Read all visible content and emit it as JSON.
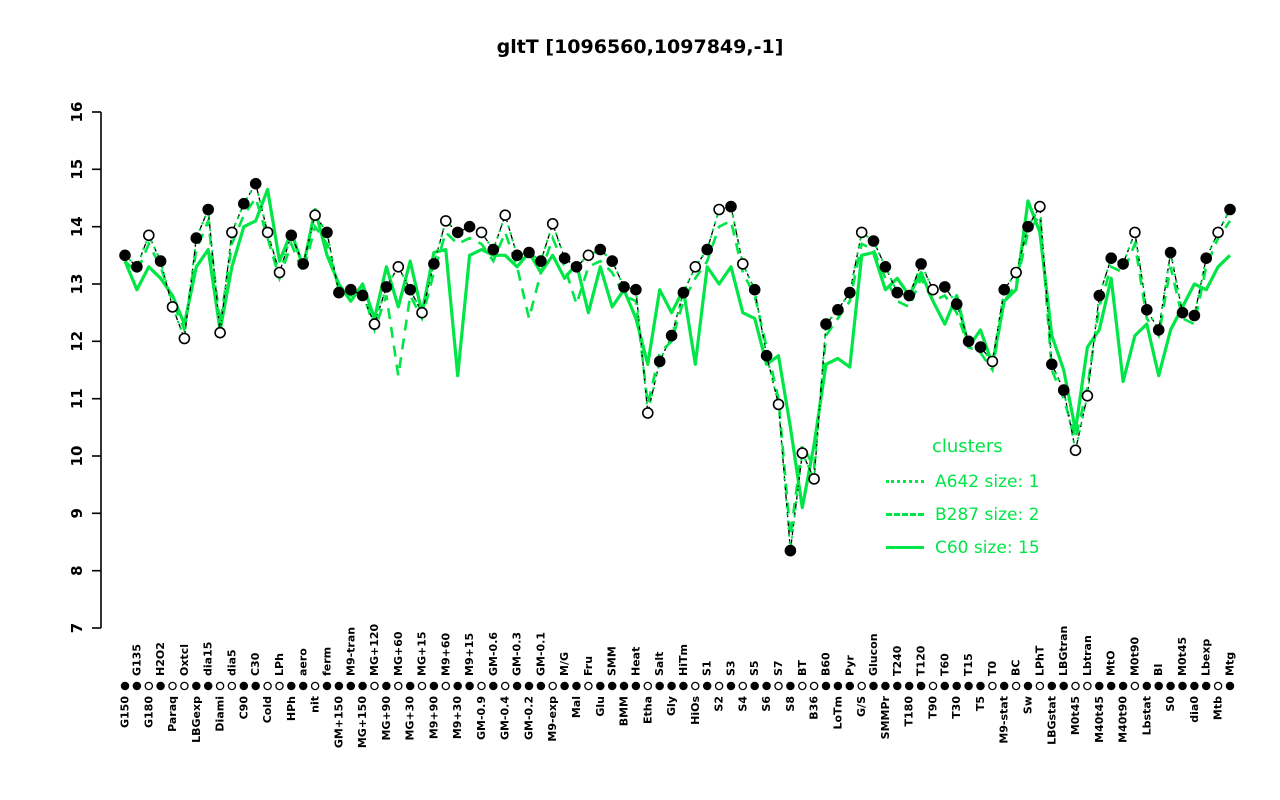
{
  "colors": {
    "cluster": "#00E646",
    "point": "#000000",
    "background": "#ffffff"
  },
  "legend": {
    "title": "clusters",
    "entries": [
      {
        "label": "A642 size: 1",
        "style": "dotted"
      },
      {
        "label": "B287 size: 2",
        "style": "dashed"
      },
      {
        "label": "C60 size: 15",
        "style": "solid"
      }
    ]
  },
  "chart_data": {
    "type": "line",
    "title": "gltT [1096560,1097849,-1]",
    "ylim": [
      7,
      16
    ],
    "yticks": [
      "7",
      "8",
      "9",
      "10",
      "11",
      "12",
      "13",
      "14",
      "15",
      "16"
    ],
    "legend_position": "lower-right",
    "grid": false,
    "categories": [
      "G150",
      "G135",
      "G180",
      "H2O2",
      "Paraq",
      "Oxtcl",
      "LBGexp",
      "dia15",
      "Diami",
      "dia5",
      "C90",
      "C30",
      "Cold",
      "LPh",
      "HPh",
      "aero",
      "nit",
      "ferm",
      "GM+150",
      "M9-tran",
      "MG+150",
      "MG+120",
      "MG+90",
      "MG+60",
      "MG+30",
      "MG+15",
      "M9+90",
      "M9+60",
      "M9+30",
      "M9+15",
      "GM-0.9",
      "GM-0.6",
      "GM-0.4",
      "GM-0.3",
      "GM-0.2",
      "GM-0.1",
      "M9-exp",
      "M/G",
      "Mal",
      "Fru",
      "Glu",
      "SMM",
      "BMM",
      "Heat",
      "Etha",
      "Salt",
      "Gly",
      "HiTm",
      "HiOs",
      "S1",
      "S2",
      "S3",
      "S4",
      "S5",
      "S6",
      "S7",
      "S8",
      "BT",
      "B36",
      "B60",
      "LoTm",
      "Pyr",
      "G/S",
      "Glucon",
      "SMMPr",
      "T240",
      "T180",
      "T120",
      "T90",
      "T60",
      "T30",
      "T15",
      "T5",
      "T0",
      "M9-stat",
      "BC",
      "Sw",
      "LPhT",
      "LBGstat",
      "LBGtran",
      "M0t45",
      "Lbtran",
      "M40t45",
      "MtO",
      "M40t90",
      "M0t90",
      "Lbstat",
      "BI",
      "S0",
      "M0t45",
      "dia0",
      "Lbexp",
      "Mtb",
      "Mtg"
    ],
    "series": [
      {
        "name": "gene",
        "style": "points-dashed-black",
        "color": "#000000",
        "values": [
          13.5,
          13.3,
          13.85,
          13.4,
          12.6,
          12.05,
          13.8,
          14.3,
          12.15,
          13.9,
          14.4,
          14.75,
          13.9,
          13.2,
          13.85,
          13.35,
          14.2,
          13.9,
          12.85,
          12.9,
          12.8,
          12.3,
          12.95,
          13.3,
          12.9,
          12.5,
          13.35,
          14.1,
          13.9,
          14.0,
          13.9,
          13.6,
          14.2,
          13.5,
          13.55,
          13.4,
          14.05,
          13.45,
          13.3,
          13.5,
          13.6,
          13.4,
          12.95,
          12.9,
          10.75,
          11.65,
          12.1,
          12.85,
          13.3,
          13.6,
          14.3,
          14.35,
          13.35,
          12.9,
          11.75,
          10.9,
          8.35,
          10.05,
          9.6,
          12.3,
          12.55,
          12.85,
          13.9,
          13.75,
          13.3,
          12.85,
          12.8,
          13.35,
          12.9,
          12.95,
          12.65,
          12.0,
          11.9,
          11.65,
          12.9,
          13.2,
          14.0,
          14.35,
          11.6,
          11.15,
          10.1,
          11.05,
          12.8,
          13.45,
          13.35,
          13.9,
          12.55,
          12.2,
          13.55,
          12.5,
          12.45,
          13.45,
          13.9,
          14.3
        ],
        "filled": [
          true,
          true,
          false,
          true,
          false,
          false,
          true,
          true,
          false,
          false,
          true,
          true,
          false,
          false,
          true,
          true,
          false,
          true,
          true,
          true,
          true,
          false,
          true,
          false,
          true,
          false,
          true,
          false,
          true,
          true,
          false,
          true,
          false,
          true,
          true,
          true,
          false,
          true,
          true,
          false,
          true,
          true,
          true,
          true,
          false,
          true,
          true,
          true,
          false,
          true,
          false,
          true,
          false,
          true,
          true,
          false,
          true,
          false,
          false,
          true,
          true,
          true,
          false,
          true,
          true,
          true,
          true,
          true,
          false,
          true,
          true,
          true,
          true,
          false,
          true,
          false,
          true,
          false,
          true,
          true,
          false,
          false,
          true,
          true,
          true,
          false,
          true,
          true,
          true,
          true,
          true,
          true,
          false,
          true
        ]
      },
      {
        "name": "A642 size: 1",
        "style": "dotted",
        "color": "#00E646",
        "values": [
          13.5,
          13.3,
          13.85,
          13.4,
          12.6,
          12.05,
          13.8,
          14.3,
          12.15,
          13.9,
          14.4,
          14.75,
          13.9,
          13.2,
          13.85,
          13.35,
          14.2,
          13.9,
          12.85,
          12.9,
          12.8,
          12.3,
          12.95,
          13.3,
          12.9,
          12.5,
          13.35,
          14.1,
          13.9,
          14.0,
          13.9,
          13.6,
          14.2,
          13.5,
          13.55,
          13.4,
          14.05,
          13.45,
          13.3,
          13.5,
          13.6,
          13.4,
          12.95,
          12.9,
          10.75,
          11.65,
          12.1,
          12.85,
          13.3,
          13.6,
          14.3,
          14.35,
          13.35,
          12.9,
          11.75,
          10.9,
          8.35,
          10.05,
          9.6,
          12.3,
          12.55,
          12.85,
          13.9,
          13.75,
          13.3,
          12.85,
          12.8,
          13.35,
          12.9,
          12.95,
          12.65,
          12.0,
          11.9,
          11.65,
          12.9,
          13.2,
          14.0,
          14.35,
          11.6,
          11.15,
          10.1,
          11.05,
          12.8,
          13.45,
          13.35,
          13.9,
          12.55,
          12.2,
          13.55,
          12.5,
          12.45,
          13.45,
          13.9,
          14.3
        ]
      },
      {
        "name": "B287 size: 2",
        "style": "dashed",
        "color": "#00E646",
        "values": [
          13.4,
          13.2,
          13.7,
          13.3,
          12.7,
          12.2,
          13.6,
          14.1,
          12.3,
          13.7,
          14.2,
          14.5,
          13.8,
          13.1,
          13.7,
          13.2,
          14.0,
          13.7,
          12.9,
          12.8,
          12.9,
          12.2,
          12.8,
          11.4,
          12.8,
          12.4,
          13.2,
          13.9,
          13.7,
          13.8,
          13.7,
          13.4,
          13.9,
          13.3,
          12.4,
          13.2,
          13.8,
          13.3,
          12.65,
          13.3,
          13.4,
          13.2,
          12.8,
          12.7,
          10.9,
          11.8,
          12.0,
          12.7,
          13.1,
          13.4,
          14.0,
          14.1,
          13.2,
          12.8,
          11.9,
          11.0,
          8.6,
          10.2,
          9.8,
          12.1,
          12.4,
          12.7,
          13.7,
          13.6,
          13.1,
          12.7,
          12.6,
          13.1,
          12.7,
          12.8,
          12.5,
          11.9,
          11.8,
          11.5,
          12.7,
          13.0,
          13.9,
          14.2,
          11.5,
          11.0,
          10.3,
          11.2,
          12.6,
          13.3,
          13.2,
          13.7,
          12.4,
          12.1,
          13.3,
          12.4,
          12.3,
          13.3,
          13.8,
          14.1
        ]
      },
      {
        "name": "C60 size: 15",
        "style": "solid",
        "color": "#00E646",
        "values": [
          13.4,
          12.9,
          13.3,
          13.1,
          12.8,
          12.3,
          13.3,
          13.6,
          12.2,
          13.3,
          14.0,
          14.1,
          14.65,
          13.4,
          13.9,
          13.3,
          14.3,
          13.5,
          13.0,
          12.7,
          13.0,
          12.4,
          13.3,
          12.6,
          13.4,
          12.5,
          13.55,
          13.6,
          11.4,
          13.5,
          13.6,
          13.5,
          13.5,
          13.3,
          13.55,
          13.2,
          13.5,
          13.1,
          13.35,
          12.5,
          13.3,
          12.6,
          12.9,
          12.4,
          11.6,
          12.9,
          12.5,
          12.9,
          11.6,
          13.3,
          13.0,
          13.3,
          12.5,
          12.4,
          11.6,
          11.75,
          10.5,
          9.1,
          10.2,
          11.6,
          11.7,
          11.55,
          13.5,
          13.55,
          12.9,
          13.1,
          12.8,
          13.2,
          12.7,
          12.3,
          12.8,
          11.9,
          12.2,
          11.6,
          12.7,
          12.9,
          14.45,
          13.9,
          12.1,
          11.5,
          10.45,
          11.9,
          12.2,
          13.1,
          11.3,
          12.1,
          12.3,
          11.4,
          12.2,
          12.6,
          13.0,
          12.9,
          13.3,
          13.5
        ]
      }
    ]
  }
}
